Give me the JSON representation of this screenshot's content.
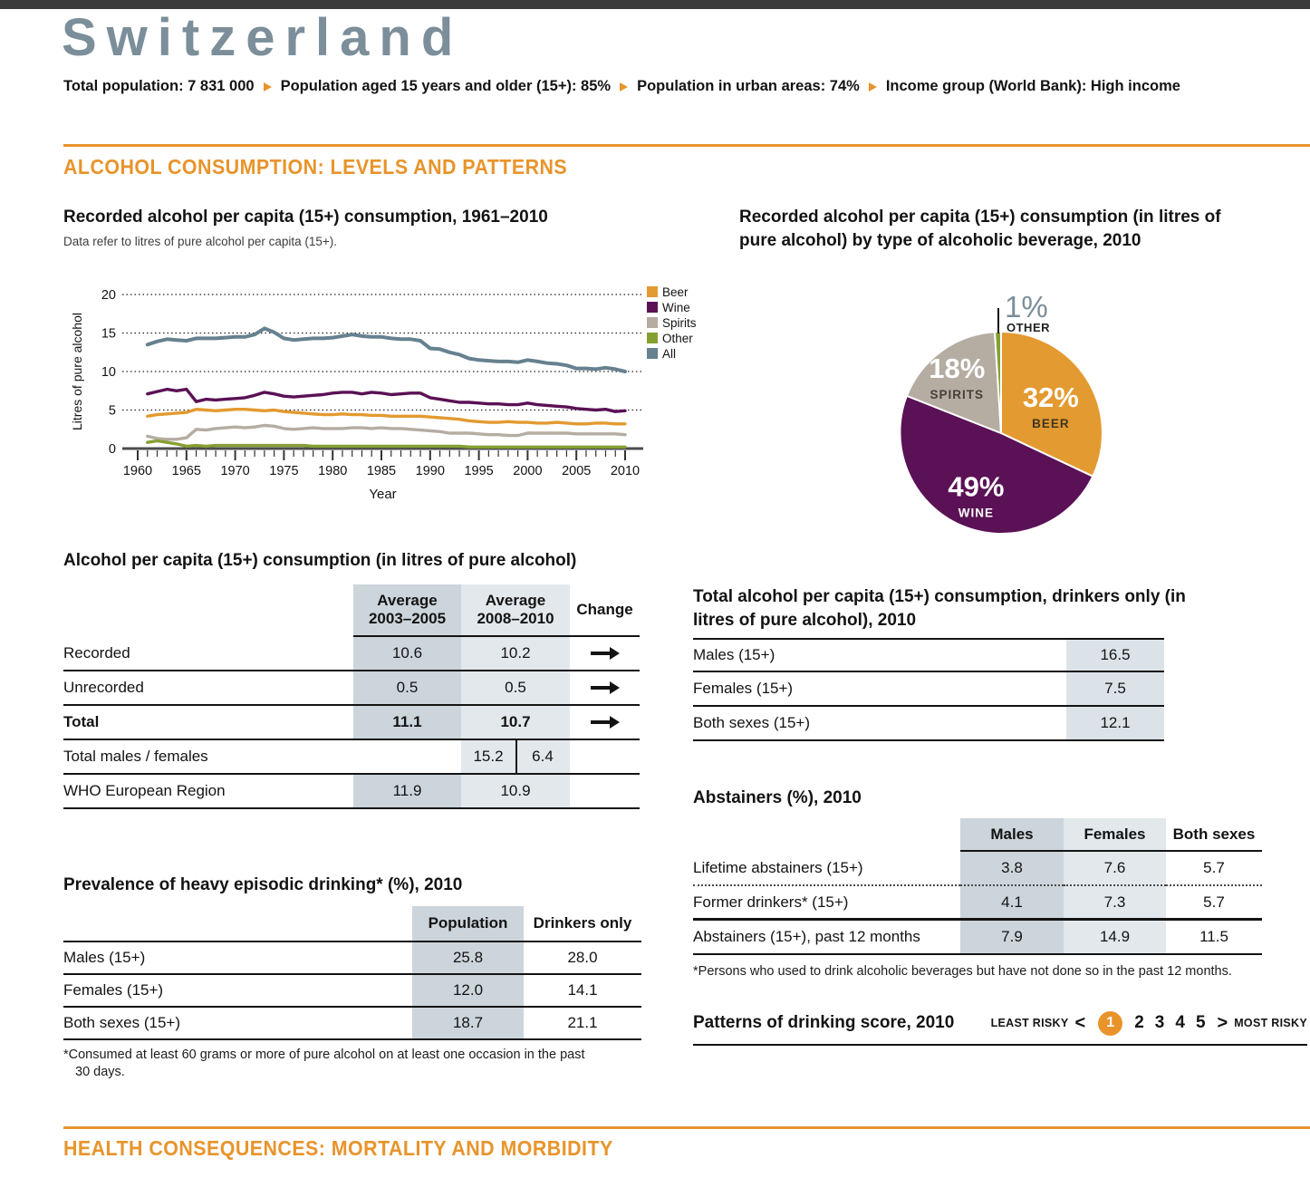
{
  "header": {
    "title": "Switzerland",
    "stats": [
      "Total population: 7 831 000",
      "Population aged 15 years and older (15+): 85%",
      "Population in urban areas: 74%",
      "Income group (World Bank): High income"
    ]
  },
  "sections": {
    "consumption": "ALCOHOL CONSUMPTION: LEVELS AND PATTERNS",
    "health": "HEALTH CONSEQUENCES: MORTALITY AND MORBIDITY"
  },
  "icons": {
    "stat_separator": "right-triangle-arrow",
    "change_stable": "right-arrow"
  },
  "colors": {
    "accent_orange": "#E8942B",
    "title_slate": "#7B8E9A",
    "shade_dark": "#CCD5DB",
    "shade_light": "#E2E8EC",
    "top_bar": "#3B3B3B"
  },
  "chart_data": [
    {
      "type": "line",
      "title": "Recorded alcohol per capita (15+) consumption, 1961–2010",
      "subtitle": "Data refer to litres of pure alcohol per capita (15+).",
      "xlabel": "Year",
      "ylabel": "Litres of pure alcohol",
      "ylim": [
        0,
        20
      ],
      "yticks": [
        0,
        5,
        10,
        15,
        20
      ],
      "xticks": [
        1960,
        1965,
        1970,
        1975,
        1980,
        1985,
        1990,
        1995,
        2000,
        2005,
        2010
      ],
      "x_range": [
        1961,
        2010
      ],
      "grid": "dotted",
      "legend_position": "right",
      "series": [
        {
          "name": "Beer",
          "color": "#E39A30",
          "width": 3.4,
          "values": [
            4.2,
            4.4,
            4.5,
            4.6,
            4.7,
            5.1,
            5.0,
            4.9,
            5.0,
            5.1,
            5.1,
            5.0,
            4.9,
            5.0,
            4.8,
            4.7,
            4.6,
            4.5,
            4.4,
            4.4,
            4.5,
            4.4,
            4.4,
            4.3,
            4.3,
            4.2,
            4.2,
            4.2,
            4.2,
            4.1,
            4.0,
            3.9,
            3.8,
            3.6,
            3.5,
            3.4,
            3.4,
            3.5,
            3.4,
            3.4,
            3.3,
            3.3,
            3.4,
            3.3,
            3.2,
            3.2,
            3.3,
            3.3,
            3.2,
            3.2
          ]
        },
        {
          "name": "Wine",
          "color": "#5A1155",
          "width": 3.4,
          "values": [
            7.1,
            7.4,
            7.7,
            7.5,
            7.7,
            6.1,
            6.4,
            6.3,
            6.4,
            6.5,
            6.6,
            6.9,
            7.3,
            7.1,
            6.8,
            6.7,
            6.8,
            6.9,
            7.0,
            7.2,
            7.3,
            7.3,
            7.1,
            7.3,
            7.2,
            7.0,
            7.1,
            7.2,
            7.2,
            6.6,
            6.4,
            6.2,
            6.0,
            6.0,
            5.9,
            5.8,
            5.8,
            5.7,
            5.7,
            5.9,
            5.7,
            5.6,
            5.5,
            5.4,
            5.2,
            5.1,
            5.0,
            5.1,
            4.8,
            4.9
          ]
        },
        {
          "name": "Spirits",
          "color": "#B5ACA2",
          "width": 3.4,
          "values": [
            1.6,
            1.3,
            1.2,
            1.2,
            1.4,
            2.5,
            2.4,
            2.6,
            2.7,
            2.8,
            2.7,
            2.8,
            3.0,
            2.9,
            2.6,
            2.5,
            2.6,
            2.7,
            2.6,
            2.6,
            2.6,
            2.7,
            2.7,
            2.6,
            2.7,
            2.6,
            2.6,
            2.5,
            2.4,
            2.3,
            2.2,
            2.0,
            2.0,
            2.0,
            1.9,
            1.8,
            1.8,
            1.7,
            1.7,
            2.0,
            2.0,
            2.0,
            2.0,
            2.0,
            1.9,
            1.9,
            1.9,
            1.9,
            1.9,
            1.8
          ]
        },
        {
          "name": "Other",
          "color": "#85A032",
          "width": 3.4,
          "values": [
            0.8,
            1.0,
            0.8,
            0.6,
            0.3,
            0.4,
            0.3,
            0.4,
            0.4,
            0.4,
            0.4,
            0.4,
            0.4,
            0.4,
            0.4,
            0.4,
            0.4,
            0.3,
            0.3,
            0.3,
            0.3,
            0.3,
            0.3,
            0.3,
            0.3,
            0.3,
            0.3,
            0.3,
            0.3,
            0.3,
            0.3,
            0.3,
            0.3,
            0.2,
            0.2,
            0.2,
            0.2,
            0.2,
            0.2,
            0.2,
            0.2,
            0.2,
            0.2,
            0.2,
            0.2,
            0.2,
            0.2,
            0.2,
            0.2,
            0.2
          ]
        },
        {
          "name": "All",
          "color": "#66818F",
          "width": 4,
          "values": [
            13.5,
            13.9,
            14.2,
            14.1,
            14.0,
            14.3,
            14.3,
            14.3,
            14.4,
            14.5,
            14.5,
            14.8,
            15.6,
            15.1,
            14.3,
            14.1,
            14.2,
            14.3,
            14.3,
            14.4,
            14.6,
            14.8,
            14.6,
            14.5,
            14.5,
            14.3,
            14.2,
            14.2,
            14.0,
            13.0,
            12.9,
            12.5,
            12.2,
            11.7,
            11.5,
            11.4,
            11.3,
            11.3,
            11.2,
            11.5,
            11.3,
            11.1,
            11.0,
            10.8,
            10.4,
            10.4,
            10.3,
            10.5,
            10.3,
            10.0
          ]
        }
      ]
    },
    {
      "type": "pie",
      "title": "Recorded alcohol per capita (15+) consumption (in litres of pure alcohol) by type of alcoholic beverage, 2010",
      "slices": [
        {
          "label": "BEER",
          "pct": 32,
          "color": "#E39A30",
          "pct_color": "#FFFFFF",
          "label_color": "#3E3420",
          "label_r": 0.58
        },
        {
          "label": "WINE",
          "pct": 49,
          "color": "#5A1155",
          "pct_color": "#FFFFFF",
          "label_color": "#FFFFFF",
          "label_r": 0.62
        },
        {
          "label": "SPIRITS",
          "pct": 18,
          "color": "#B5ACA2",
          "pct_color": "#FFFFFF",
          "label_color": "#45413B",
          "label_r": 0.74
        },
        {
          "label": "OTHER",
          "pct": 1,
          "color": "#85A032",
          "callout": true,
          "pct_color": "#7B8E9A",
          "label_color": "#222222"
        }
      ]
    }
  ],
  "apc_table": {
    "title": "Alcohol per capita (15+) consumption (in litres of pure alcohol)",
    "col1_header_line1": "Average",
    "col1_header_line2": "2003–2005",
    "col2_header_line1": "Average",
    "col2_header_line2": "2008–2010",
    "col3_header": "Change",
    "rows": [
      {
        "label": "Recorded",
        "avg_2003_2005": "10.6",
        "avg_2008_2010": "10.2",
        "change": "stable"
      },
      {
        "label": "Unrecorded",
        "avg_2003_2005": "0.5",
        "avg_2008_2010": "0.5",
        "change": "stable"
      },
      {
        "label": "Total",
        "avg_2003_2005": "11.1",
        "avg_2008_2010": "10.7",
        "change": "stable"
      },
      {
        "label": "Total males / females",
        "males": "15.2",
        "females": "6.4"
      },
      {
        "label": "WHO European Region",
        "avg_2003_2005": "11.9",
        "avg_2008_2010": "10.9"
      }
    ]
  },
  "drinkers_table": {
    "title": "Total alcohol per capita (15+) consumption, drinkers only (in litres of pure alcohol), 2010",
    "rows": [
      {
        "label": "Males (15+)",
        "value": "16.5"
      },
      {
        "label": "Females (15+)",
        "value": "7.5"
      },
      {
        "label": "Both sexes (15+)",
        "value": "12.1"
      }
    ]
  },
  "heavy_table": {
    "title": "Prevalence of heavy episodic drinking* (%), 2010",
    "headers": [
      "Population",
      "Drinkers only"
    ],
    "rows": [
      {
        "label": "Males (15+)",
        "population": "25.8",
        "drinkers_only": "28.0"
      },
      {
        "label": "Females (15+)",
        "population": "12.0",
        "drinkers_only": "14.1"
      },
      {
        "label": "Both sexes (15+)",
        "population": "18.7",
        "drinkers_only": "21.1"
      }
    ],
    "footnote_line1": "*Consumed at least 60 grams or more of pure alcohol on at least one occasion in the past",
    "footnote_line2": "30 days."
  },
  "abstainers_table": {
    "title": "Abstainers (%), 2010",
    "headers": [
      "Males",
      "Females",
      "Both sexes"
    ],
    "rows": [
      {
        "label": "Lifetime abstainers (15+)",
        "males": "3.8",
        "females": "7.6",
        "both_sexes": "5.7"
      },
      {
        "label": "Former drinkers* (15+)",
        "males": "4.1",
        "females": "7.3",
        "both_sexes": "5.7"
      },
      {
        "label": "Abstainers (15+), past 12 months",
        "males": "7.9",
        "females": "14.9",
        "both_sexes": "11.5"
      }
    ],
    "footnote": "*Persons who used to drink alcoholic beverages but have not done so in the past 12 months."
  },
  "patterns": {
    "title": "Patterns of drinking score, 2010",
    "least_label": "LEAST RISKY",
    "most_label": "MOST RISKY",
    "less_than": "<",
    "greater_than": ">",
    "score": 1,
    "scale": [
      1,
      2,
      3,
      4,
      5
    ]
  }
}
